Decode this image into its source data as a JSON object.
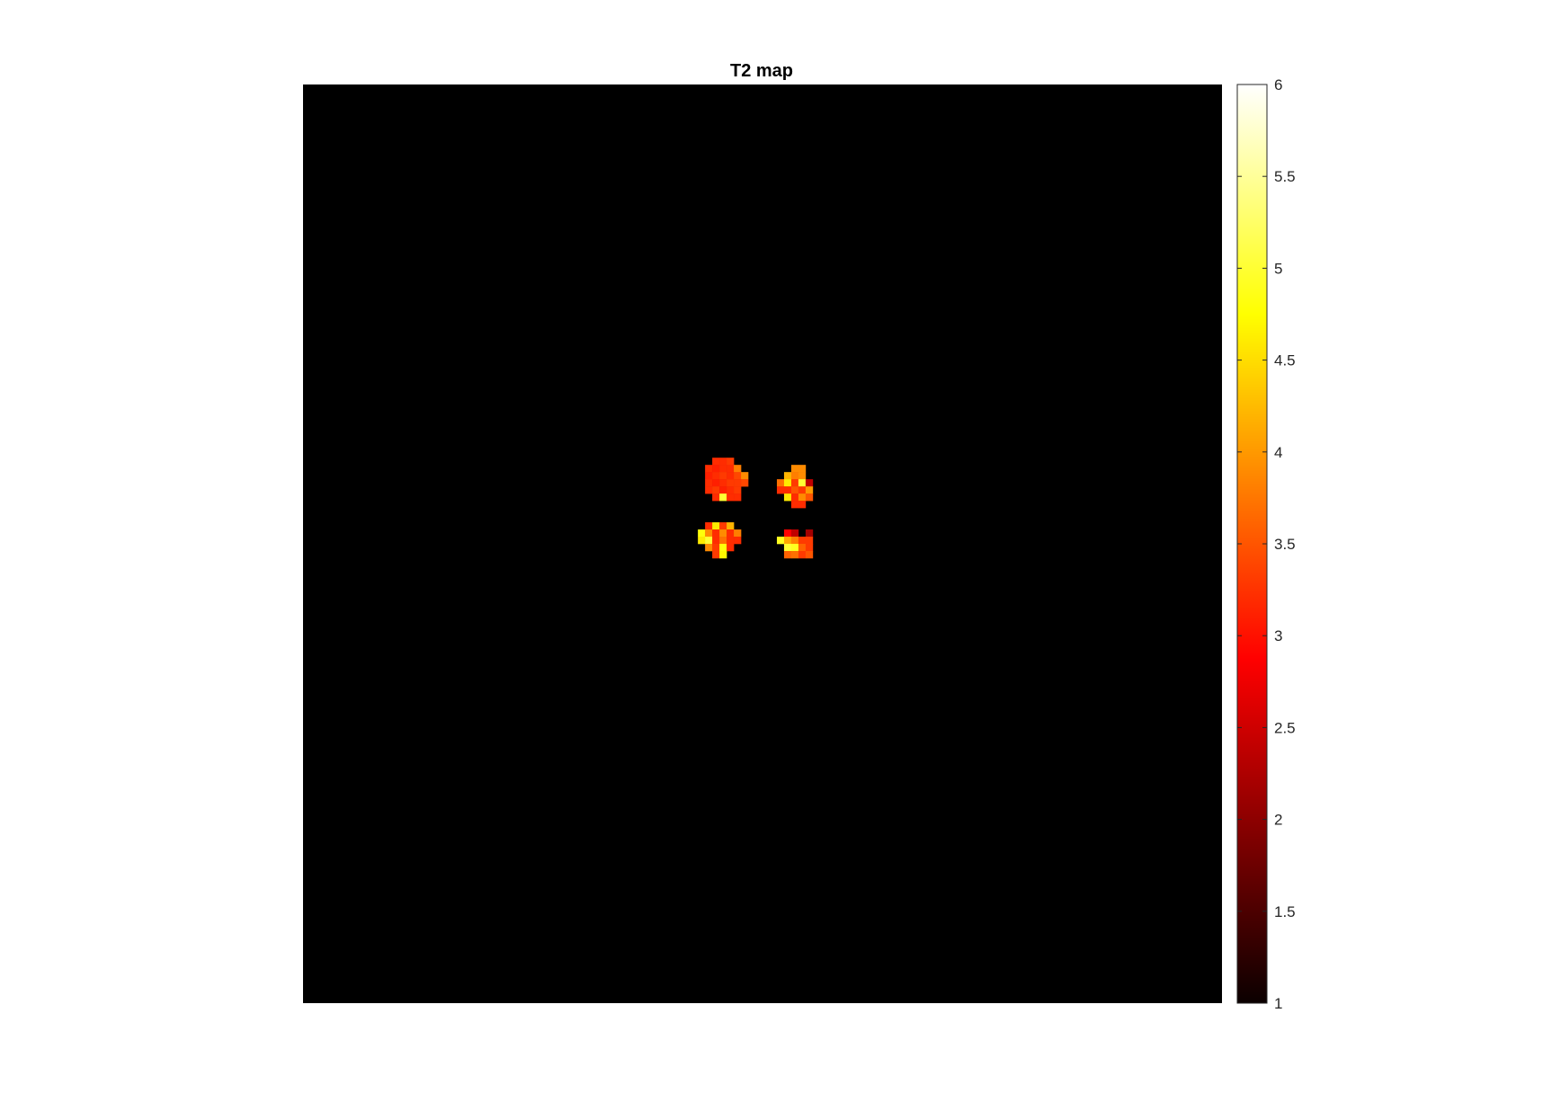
{
  "chart_data": {
    "type": "heatmap",
    "title": "T2 map",
    "xlabel": "",
    "ylabel": "",
    "colormap": "hot",
    "clim": [
      1,
      6
    ],
    "colorbar": {
      "ticks": [
        1,
        1.5,
        2,
        2.5,
        3,
        3.5,
        4,
        4.5,
        5,
        5.5,
        6
      ],
      "tick_labels": [
        "1",
        "1.5",
        "2",
        "2.5",
        "3",
        "3.5",
        "4",
        "4.5",
        "5",
        "5.5",
        "6"
      ],
      "location": "right"
    },
    "grid_size": [
      128,
      128
    ],
    "background_value": 0,
    "background_color": "#000000",
    "cells": [
      {
        "row": 52,
        "col": 57,
        "value": 3.2
      },
      {
        "row": 52,
        "col": 58,
        "value": 3.2
      },
      {
        "row": 52,
        "col": 59,
        "value": 3.3
      },
      {
        "row": 53,
        "col": 56,
        "value": 3.2
      },
      {
        "row": 53,
        "col": 57,
        "value": 3.1
      },
      {
        "row": 53,
        "col": 58,
        "value": 3.2
      },
      {
        "row": 53,
        "col": 59,
        "value": 3.2
      },
      {
        "row": 53,
        "col": 60,
        "value": 3.8
      },
      {
        "row": 54,
        "col": 56,
        "value": 3.1
      },
      {
        "row": 54,
        "col": 57,
        "value": 3.2
      },
      {
        "row": 54,
        "col": 58,
        "value": 3.3
      },
      {
        "row": 54,
        "col": 59,
        "value": 3.2
      },
      {
        "row": 54,
        "col": 60,
        "value": 3.4
      },
      {
        "row": 54,
        "col": 61,
        "value": 3.9
      },
      {
        "row": 55,
        "col": 56,
        "value": 3.2
      },
      {
        "row": 55,
        "col": 57,
        "value": 3.1
      },
      {
        "row": 55,
        "col": 58,
        "value": 3.2
      },
      {
        "row": 55,
        "col": 59,
        "value": 3.3
      },
      {
        "row": 55,
        "col": 60,
        "value": 3.3
      },
      {
        "row": 55,
        "col": 61,
        "value": 3.4
      },
      {
        "row": 56,
        "col": 56,
        "value": 3.2
      },
      {
        "row": 56,
        "col": 57,
        "value": 3.3
      },
      {
        "row": 56,
        "col": 58,
        "value": 3.1
      },
      {
        "row": 56,
        "col": 59,
        "value": 3.2
      },
      {
        "row": 56,
        "col": 60,
        "value": 3.3
      },
      {
        "row": 57,
        "col": 57,
        "value": 3.2
      },
      {
        "row": 57,
        "col": 58,
        "value": 5.0
      },
      {
        "row": 57,
        "col": 59,
        "value": 3.2
      },
      {
        "row": 57,
        "col": 60,
        "value": 3.2
      },
      {
        "row": 53,
        "col": 68,
        "value": 3.9
      },
      {
        "row": 53,
        "col": 69,
        "value": 3.9
      },
      {
        "row": 54,
        "col": 67,
        "value": 4.2
      },
      {
        "row": 54,
        "col": 68,
        "value": 3.8
      },
      {
        "row": 54,
        "col": 69,
        "value": 3.9
      },
      {
        "row": 55,
        "col": 66,
        "value": 3.7
      },
      {
        "row": 55,
        "col": 67,
        "value": 4.6
      },
      {
        "row": 55,
        "col": 68,
        "value": 3.3
      },
      {
        "row": 55,
        "col": 69,
        "value": 5.0
      },
      {
        "row": 55,
        "col": 70,
        "value": 2.2
      },
      {
        "row": 56,
        "col": 66,
        "value": 3.2
      },
      {
        "row": 56,
        "col": 67,
        "value": 3.2
      },
      {
        "row": 56,
        "col": 68,
        "value": 3.5
      },
      {
        "row": 56,
        "col": 69,
        "value": 3.3
      },
      {
        "row": 56,
        "col": 70,
        "value": 4.0
      },
      {
        "row": 57,
        "col": 67,
        "value": 4.6
      },
      {
        "row": 57,
        "col": 68,
        "value": 3.2
      },
      {
        "row": 57,
        "col": 69,
        "value": 3.9
      },
      {
        "row": 57,
        "col": 70,
        "value": 3.5
      },
      {
        "row": 58,
        "col": 68,
        "value": 3.2
      },
      {
        "row": 58,
        "col": 69,
        "value": 3.2
      },
      {
        "row": 61,
        "col": 56,
        "value": 3.2
      },
      {
        "row": 61,
        "col": 57,
        "value": 4.6
      },
      {
        "row": 61,
        "col": 58,
        "value": 3.3
      },
      {
        "row": 61,
        "col": 59,
        "value": 4.2
      },
      {
        "row": 62,
        "col": 55,
        "value": 4.8
      },
      {
        "row": 62,
        "col": 56,
        "value": 3.9
      },
      {
        "row": 62,
        "col": 57,
        "value": 3.2
      },
      {
        "row": 62,
        "col": 58,
        "value": 3.9
      },
      {
        "row": 62,
        "col": 59,
        "value": 3.2
      },
      {
        "row": 62,
        "col": 60,
        "value": 3.8
      },
      {
        "row": 63,
        "col": 55,
        "value": 4.6
      },
      {
        "row": 63,
        "col": 56,
        "value": 5.0
      },
      {
        "row": 63,
        "col": 57,
        "value": 3.2
      },
      {
        "row": 63,
        "col": 58,
        "value": 3.7
      },
      {
        "row": 63,
        "col": 59,
        "value": 3.2
      },
      {
        "row": 63,
        "col": 60,
        "value": 3.2
      },
      {
        "row": 64,
        "col": 56,
        "value": 3.9
      },
      {
        "row": 64,
        "col": 57,
        "value": 3.3
      },
      {
        "row": 64,
        "col": 58,
        "value": 4.8
      },
      {
        "row": 64,
        "col": 59,
        "value": 3.2
      },
      {
        "row": 65,
        "col": 57,
        "value": 3.3
      },
      {
        "row": 65,
        "col": 58,
        "value": 4.7
      },
      {
        "row": 62,
        "col": 67,
        "value": 2.8
      },
      {
        "row": 62,
        "col": 68,
        "value": 2.2
      },
      {
        "row": 62,
        "col": 70,
        "value": 2.0
      },
      {
        "row": 63,
        "col": 66,
        "value": 4.9
      },
      {
        "row": 63,
        "col": 67,
        "value": 4.1
      },
      {
        "row": 63,
        "col": 68,
        "value": 3.8
      },
      {
        "row": 63,
        "col": 69,
        "value": 3.3
      },
      {
        "row": 63,
        "col": 70,
        "value": 3.3
      },
      {
        "row": 64,
        "col": 67,
        "value": 5.0
      },
      {
        "row": 64,
        "col": 68,
        "value": 4.9
      },
      {
        "row": 64,
        "col": 69,
        "value": 3.6
      },
      {
        "row": 64,
        "col": 70,
        "value": 3.3
      },
      {
        "row": 65,
        "col": 67,
        "value": 3.6
      },
      {
        "row": 65,
        "col": 68,
        "value": 3.7
      },
      {
        "row": 65,
        "col": 69,
        "value": 3.3
      },
      {
        "row": 65,
        "col": 70,
        "value": 3.5
      }
    ]
  }
}
